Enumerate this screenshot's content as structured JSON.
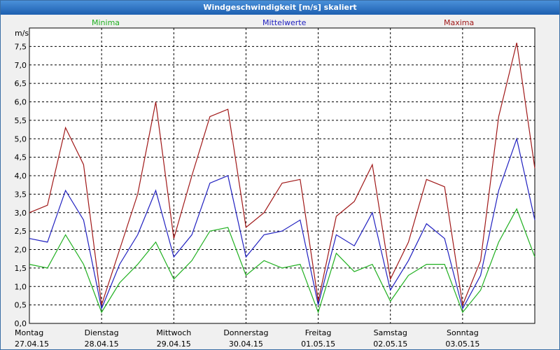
{
  "window": {
    "title": "Windgeschwindigkeit [m/s] skaliert"
  },
  "chart_data": {
    "type": "line",
    "title": "Windgeschwindigkeit [m/s] skaliert",
    "ylabel": "m/s",
    "xlabel": "",
    "ylim": [
      0,
      8.0
    ],
    "yticks": [
      "0,0",
      "0,5",
      "1,0",
      "1,5",
      "2,0",
      "2,5",
      "3,0",
      "3,5",
      "4,0",
      "4,5",
      "5,0",
      "5,5",
      "6,0",
      "6,5",
      "7,0",
      "7,5"
    ],
    "ytick_values": [
      0,
      0.5,
      1,
      1.5,
      2,
      2.5,
      3,
      3.5,
      4,
      4.5,
      5,
      5.5,
      6,
      6.5,
      7,
      7.5
    ],
    "xlim": [
      0,
      7
    ],
    "grid": true,
    "legend_position": "top",
    "days": [
      {
        "name": "Montag",
        "date": "27.04.15"
      },
      {
        "name": "Dienstag",
        "date": "28.04.15"
      },
      {
        "name": "Mittwoch",
        "date": "29.04.15"
      },
      {
        "name": "Donnerstag",
        "date": "30.04.15"
      },
      {
        "name": "Freitag",
        "date": "01.05.15"
      },
      {
        "name": "Samstag",
        "date": "02.05.15"
      },
      {
        "name": "Sonntag",
        "date": "03.05.15"
      }
    ],
    "x": [
      0,
      0.25,
      0.5,
      0.75,
      1,
      1.25,
      1.5,
      1.75,
      2,
      2.25,
      2.5,
      2.75,
      3,
      3.25,
      3.5,
      3.75,
      4,
      4.25,
      4.5,
      4.75,
      5,
      5.25,
      5.5,
      5.75,
      6,
      6.25,
      6.5,
      6.75,
      7
    ],
    "series": [
      {
        "name": "Minima",
        "color": "#20b020",
        "values": [
          1.6,
          1.5,
          2.4,
          1.6,
          0.3,
          1.1,
          1.6,
          2.2,
          1.2,
          1.7,
          2.5,
          2.6,
          1.3,
          1.7,
          1.5,
          1.6,
          0.3,
          1.9,
          1.4,
          1.6,
          0.6,
          1.3,
          1.6,
          1.6,
          0.3,
          0.9,
          2.2,
          3.1,
          1.8
        ]
      },
      {
        "name": "Mittelwerte",
        "color": "#2020c0",
        "values": [
          2.3,
          2.2,
          3.6,
          2.8,
          0.4,
          1.6,
          2.4,
          3.6,
          1.8,
          2.4,
          3.8,
          4.0,
          1.8,
          2.4,
          2.5,
          2.8,
          0.5,
          2.4,
          2.1,
          3.0,
          0.9,
          1.7,
          2.7,
          2.3,
          0.4,
          1.3,
          3.6,
          5.0,
          2.8
        ]
      },
      {
        "name": "Maxima",
        "color": "#a01818",
        "values": [
          3.0,
          3.2,
          5.3,
          4.3,
          0.5,
          2.0,
          3.5,
          6.0,
          2.3,
          4.0,
          5.6,
          5.8,
          2.6,
          3.0,
          3.8,
          3.9,
          0.6,
          2.9,
          3.3,
          4.3,
          1.2,
          2.2,
          3.9,
          3.7,
          0.5,
          1.7,
          5.6,
          7.6,
          4.2
        ]
      }
    ]
  }
}
